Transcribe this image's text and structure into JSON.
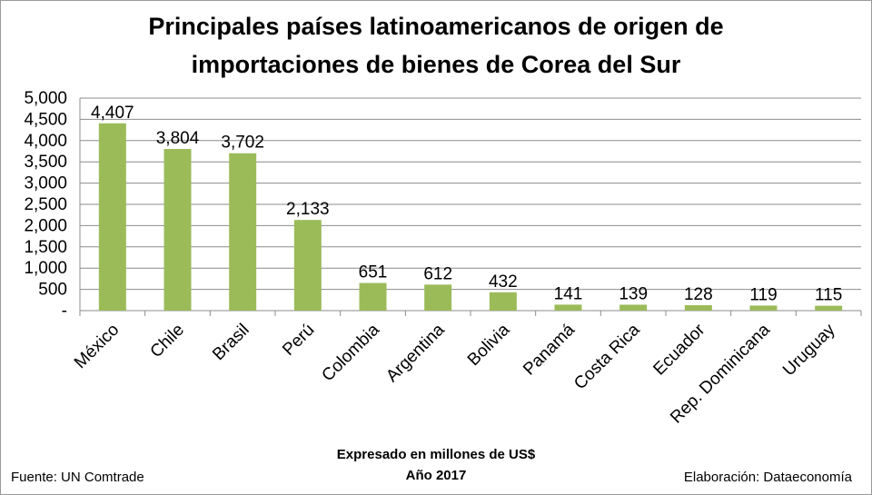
{
  "chart_data": {
    "type": "bar",
    "title_line1": "Principales países latinoamericanos de origen de",
    "title_line2": "importaciones de bienes de Corea del Sur",
    "categories": [
      "México",
      "Chile",
      "Brasil",
      "Perú",
      "Colombia",
      "Argentina",
      "Bolivia",
      "Panamá",
      "Costa Rica",
      "Ecuador",
      "Rep. Dominicana",
      "Uruguay"
    ],
    "values": [
      4407,
      3804,
      3702,
      2133,
      651,
      612,
      432,
      141,
      139,
      128,
      119,
      115
    ],
    "value_labels": [
      "4,407",
      "3,804",
      "3,702",
      "2,133",
      "651",
      "612",
      "432",
      "141",
      "139",
      "128",
      "119",
      "115"
    ],
    "ylim": [
      0,
      5000
    ],
    "y_ticks": [
      0,
      500,
      1000,
      1500,
      2000,
      2500,
      3000,
      3500,
      4000,
      4500,
      5000
    ],
    "y_tick_labels": [
      "-",
      "500",
      "1,000",
      "1,500",
      "2,000",
      "2,500",
      "3,000",
      "3,500",
      "4,000",
      "4,500",
      "5,000"
    ],
    "grid": true,
    "bar_color": "#9bbb59",
    "note_line1": "Expresado en millones de US$",
    "note_line2": "Año 2017"
  },
  "footer": {
    "source": "Fuente: UN Comtrade",
    "credit": "Elaboración: Dataeconomía"
  }
}
